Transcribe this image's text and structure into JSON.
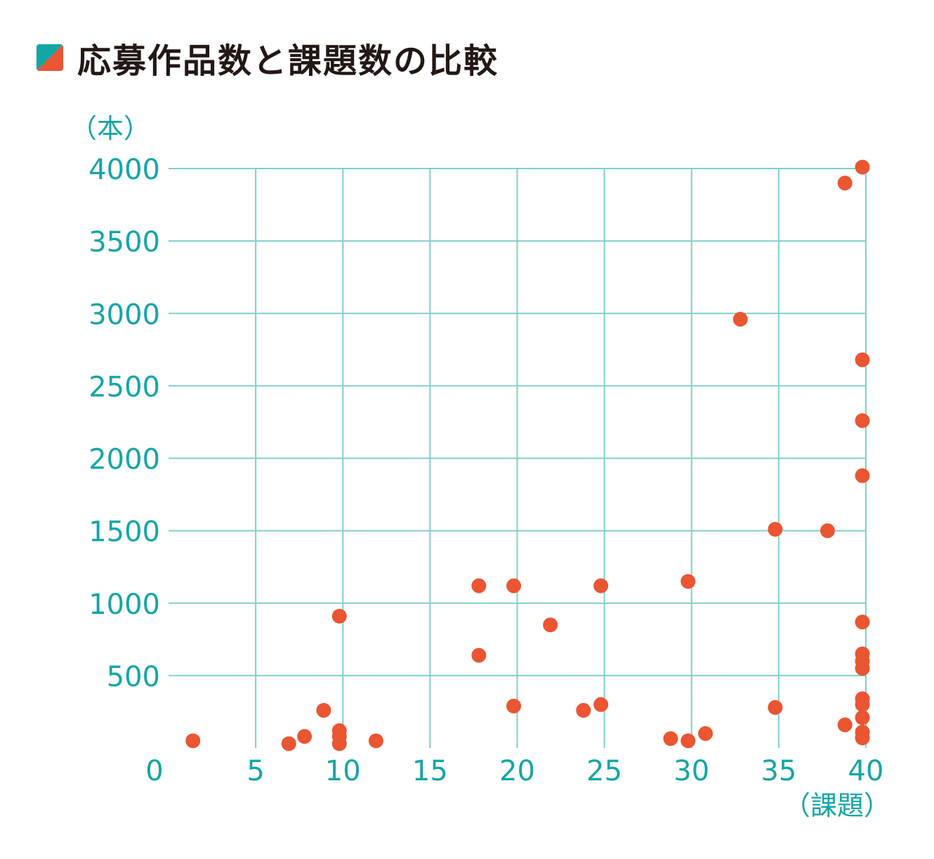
{
  "title": "応募作品数と課題数の比較",
  "colors": {
    "accent": "#16a5a5",
    "points": "#ea5532",
    "grid": "#7fcfcc",
    "title": "#231815"
  },
  "icons": {
    "title_marker": "diagonal-split-square-icon"
  },
  "chart_data": {
    "type": "scatter",
    "title": "応募作品数と課題数の比較",
    "xlabel": "（課題）",
    "ylabel": "（本）",
    "xlim": [
      0,
      40
    ],
    "ylim": [
      0,
      4000
    ],
    "x_ticks": [
      "0",
      "5",
      "10",
      "15",
      "20",
      "25",
      "30",
      "35",
      "40"
    ],
    "y_ticks": [
      "500",
      "1000",
      "1500",
      "2000",
      "2500",
      "3000",
      "3500",
      "4000"
    ],
    "grid": true,
    "points": [
      {
        "x": 1.4,
        "y": 50
      },
      {
        "x": 6.9,
        "y": 30
      },
      {
        "x": 7.8,
        "y": 80
      },
      {
        "x": 8.9,
        "y": 260
      },
      {
        "x": 9.8,
        "y": 120
      },
      {
        "x": 9.8,
        "y": 80
      },
      {
        "x": 9.8,
        "y": 30
      },
      {
        "x": 9.8,
        "y": 910
      },
      {
        "x": 11.9,
        "y": 50
      },
      {
        "x": 17.8,
        "y": 1120
      },
      {
        "x": 17.8,
        "y": 640
      },
      {
        "x": 19.8,
        "y": 1120
      },
      {
        "x": 19.8,
        "y": 290
      },
      {
        "x": 21.9,
        "y": 850
      },
      {
        "x": 23.8,
        "y": 260
      },
      {
        "x": 24.8,
        "y": 1120
      },
      {
        "x": 24.8,
        "y": 300
      },
      {
        "x": 28.8,
        "y": 65
      },
      {
        "x": 29.8,
        "y": 1150
      },
      {
        "x": 29.8,
        "y": 50
      },
      {
        "x": 30.8,
        "y": 100
      },
      {
        "x": 32.8,
        "y": 2960
      },
      {
        "x": 34.8,
        "y": 1510
      },
      {
        "x": 34.8,
        "y": 280
      },
      {
        "x": 37.8,
        "y": 1500
      },
      {
        "x": 38.8,
        "y": 3900
      },
      {
        "x": 38.8,
        "y": 160
      },
      {
        "x": 39.8,
        "y": 4010
      },
      {
        "x": 39.8,
        "y": 2680
      },
      {
        "x": 39.8,
        "y": 2260
      },
      {
        "x": 39.8,
        "y": 1880
      },
      {
        "x": 39.8,
        "y": 870
      },
      {
        "x": 39.8,
        "y": 650
      },
      {
        "x": 39.8,
        "y": 600
      },
      {
        "x": 39.8,
        "y": 550
      },
      {
        "x": 39.8,
        "y": 340
      },
      {
        "x": 39.8,
        "y": 300
      },
      {
        "x": 39.8,
        "y": 210
      },
      {
        "x": 39.8,
        "y": 110
      },
      {
        "x": 39.8,
        "y": 70
      }
    ]
  }
}
